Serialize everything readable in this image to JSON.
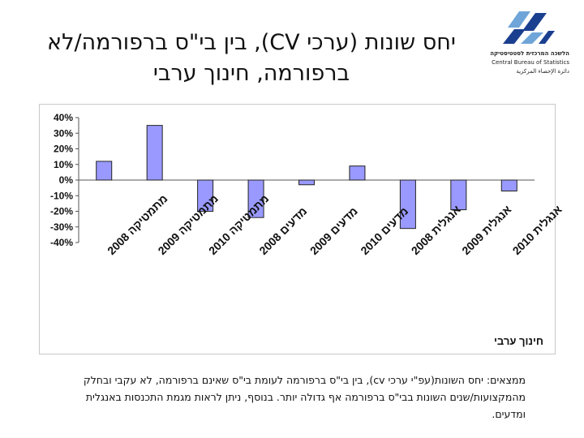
{
  "slide": {
    "title_line1": "יחס שונות (ערכי CV), בין בי\"ס ברפורמה/לא",
    "title_line2": "ברפורמה, חינוך ערבי"
  },
  "logo": {
    "hebrew_name": "הלשכה המרכזית לסטטיסטיקה",
    "english_name": "Central Bureau of Statistics",
    "arabic_name": "دائرة الإحصاء المركزية",
    "colors": {
      "dark": "#1b3f8f",
      "light": "#6fa5d8"
    }
  },
  "chart_data": {
    "type": "bar",
    "title": "חינוך ערבי",
    "categories": [
      "מתמטיקה 2008",
      "מתמטיקה 2009",
      "מתמטיקה 2010",
      "מדעים 2008",
      "מדעים 2009",
      "מדעים 2010",
      "אנגלית 2008",
      "אנגלית 2009",
      "אנגלית 2010"
    ],
    "values": [
      12,
      35,
      -20,
      -24,
      -3,
      9,
      -31,
      -19,
      -7
    ],
    "yticks": [
      "40%",
      "30%",
      "20%",
      "10%",
      "0%",
      "-10%",
      "-20%",
      "-30%",
      "-40%"
    ],
    "ylim": [
      -40,
      40
    ],
    "ylabel": "",
    "xlabel": "",
    "bar_color": "#9999ff",
    "bar_border": "#222222",
    "grid": false,
    "legend": "none"
  },
  "findings": {
    "text": "ממצאים: יחס השונות(עפ\"י ערכי cv), בין בי\"ס ברפורמה לעומת בי\"ס שאינם ברפורמה, לא עקבי ובחלק מהמקצועות/שנים השונות בבי\"ס ברפורמה אף גדולה יותר. בנוסף, ניתן לראות מגמת התכנסות באנגלית ומדעים."
  }
}
